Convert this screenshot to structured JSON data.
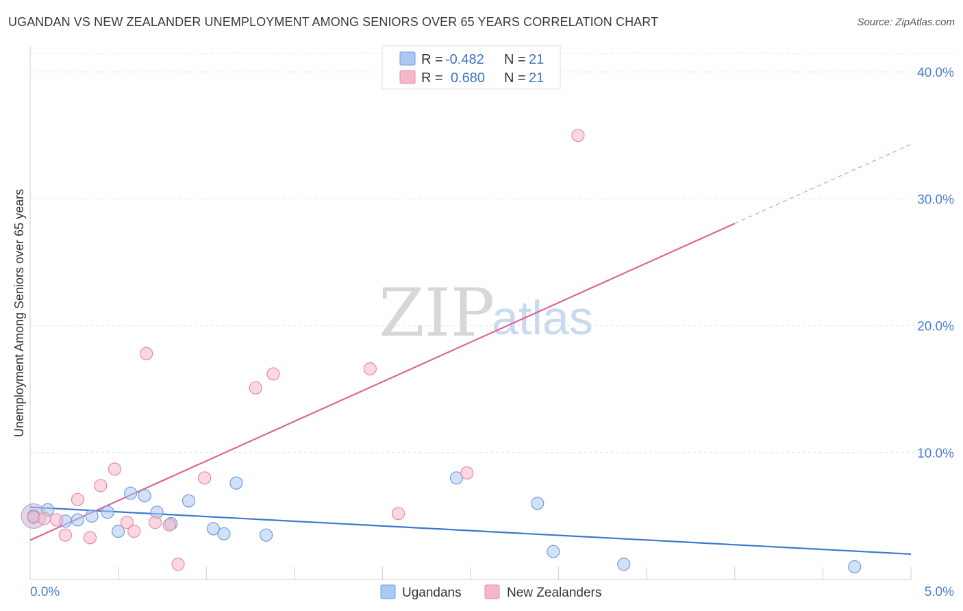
{
  "header": {
    "title": "UGANDAN VS NEW ZEALANDER UNEMPLOYMENT AMONG SENIORS OVER 65 YEARS CORRELATION CHART",
    "source": "Source: ZipAtlas.com"
  },
  "watermark": {
    "zip": "ZIP",
    "atlas": "atlas"
  },
  "legend": {
    "rows": [
      {
        "r_label": "R =",
        "r_value": "-0.482",
        "n_label": "N =",
        "n_value": "21",
        "color": "#a9c8f2"
      },
      {
        "r_label": "R =",
        "r_value": "0.680",
        "n_label": "N =",
        "n_value": "21",
        "color": "#f5b8ca"
      }
    ]
  },
  "chart_data": {
    "type": "scatter",
    "title": "UGANDAN VS NEW ZEALANDER UNEMPLOYMENT AMONG SENIORS OVER 65 YEARS CORRELATION CHART",
    "xlabel": "",
    "ylabel": "Unemployment Among Seniors over 65 years",
    "xlim": [
      0,
      5
    ],
    "ylim": [
      0,
      42
    ],
    "x_tick_labels": {
      "min": "0.0%",
      "max": "5.0%"
    },
    "y_ticks": [
      10,
      20,
      30,
      40
    ],
    "y_tick_labels": [
      "10.0%",
      "20.0%",
      "30.0%",
      "40.0%"
    ],
    "series": [
      {
        "name": "Ugandans",
        "color": "#a9c8f2",
        "stroke": "#6f9ede",
        "line_color": "#3a78d0",
        "points": [
          [
            0.02,
            5.0
          ],
          [
            0.1,
            5.5
          ],
          [
            0.2,
            4.6
          ],
          [
            0.27,
            4.7
          ],
          [
            0.35,
            5.0
          ],
          [
            0.44,
            5.3
          ],
          [
            0.5,
            3.8
          ],
          [
            0.57,
            6.8
          ],
          [
            0.65,
            6.6
          ],
          [
            0.72,
            5.3
          ],
          [
            0.8,
            4.4
          ],
          [
            0.9,
            6.2
          ],
          [
            1.04,
            4.0
          ],
          [
            1.1,
            3.6
          ],
          [
            1.17,
            7.6
          ],
          [
            1.34,
            3.5
          ],
          [
            2.42,
            8.0
          ],
          [
            2.88,
            6.0
          ],
          [
            2.97,
            2.2
          ],
          [
            3.37,
            1.2
          ],
          [
            4.68,
            1.0
          ]
        ],
        "trend": {
          "x": [
            0,
            5
          ],
          "y": [
            5.7,
            2.0
          ]
        }
      },
      {
        "name": "New Zealanders",
        "color": "#f5b8ca",
        "stroke": "#e78aa8",
        "line_color": "#e0648f",
        "points": [
          [
            0.02,
            4.9
          ],
          [
            0.08,
            4.8
          ],
          [
            0.15,
            4.7
          ],
          [
            0.2,
            3.5
          ],
          [
            0.27,
            6.3
          ],
          [
            0.34,
            3.3
          ],
          [
            0.4,
            7.4
          ],
          [
            0.48,
            8.7
          ],
          [
            0.55,
            4.5
          ],
          [
            0.59,
            3.8
          ],
          [
            0.66,
            17.8
          ],
          [
            0.71,
            4.5
          ],
          [
            0.79,
            4.3
          ],
          [
            0.84,
            1.2
          ],
          [
            0.99,
            8.0
          ],
          [
            1.28,
            15.1
          ],
          [
            1.38,
            16.2
          ],
          [
            1.93,
            16.6
          ],
          [
            2.09,
            5.2
          ],
          [
            2.48,
            8.4
          ],
          [
            3.11,
            35.0
          ]
        ],
        "trend": {
          "x": [
            0,
            5
          ],
          "y": [
            3.1,
            34.3
          ],
          "solid_until_x": 4.0
        }
      }
    ]
  }
}
